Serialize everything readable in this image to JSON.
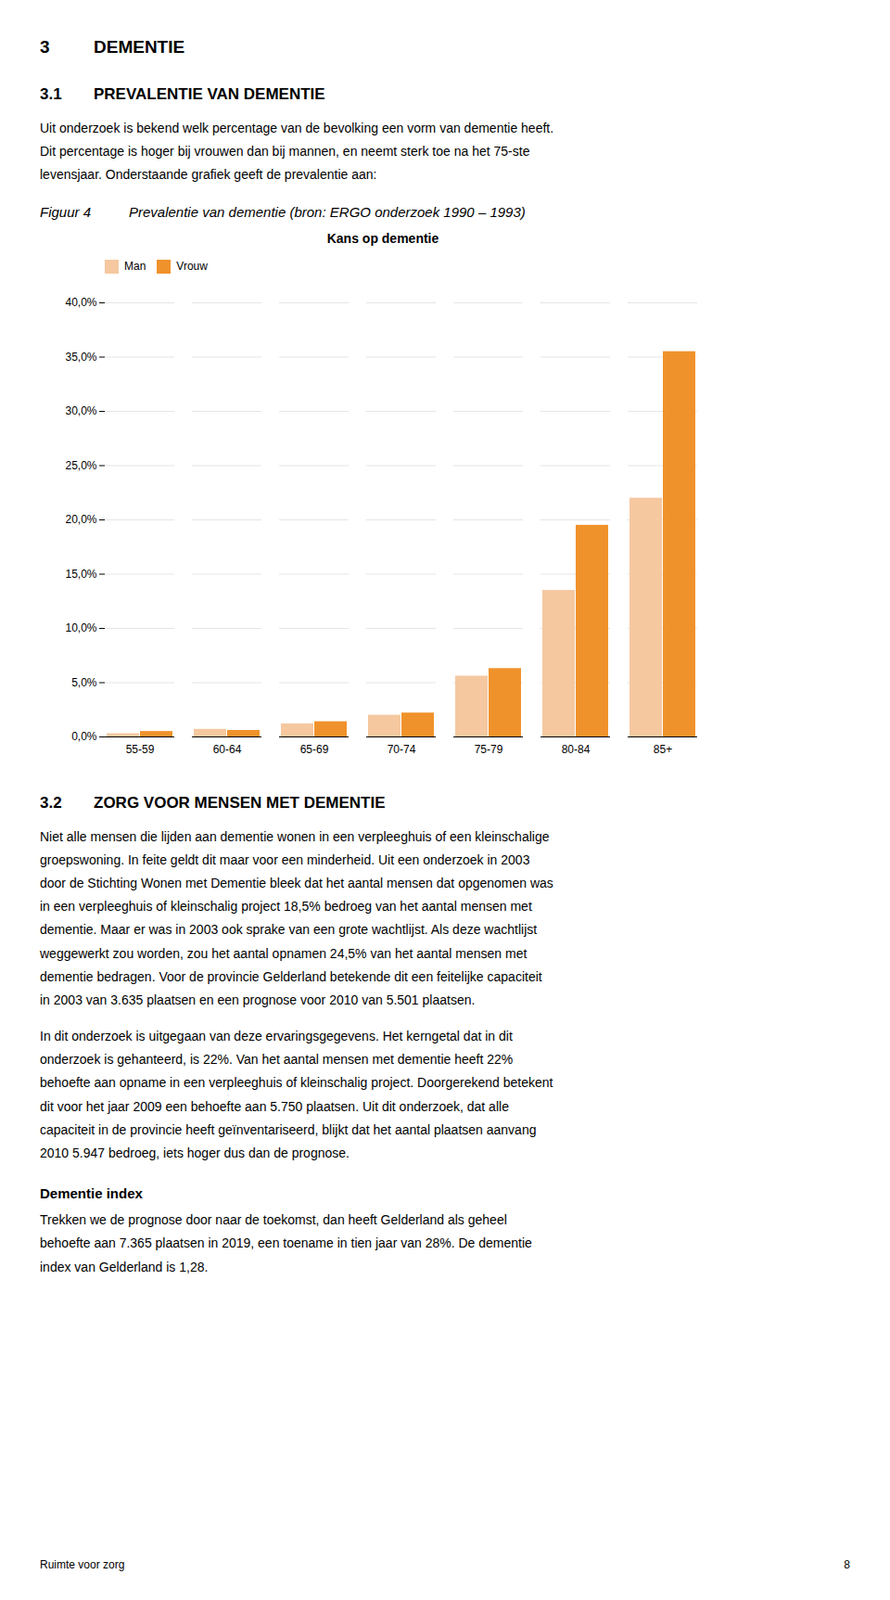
{
  "page": {
    "heading1": [
      "3",
      "DEMENTIE"
    ],
    "heading2": [
      "3.1",
      "PREVALENTIE VAN DEMENTIE"
    ],
    "paragraph1": "Uit onderzoek is bekend welk percentage van de bevolking een vorm van dementie heeft.\nDit percentage is hoger bij vrouwen dan bij mannen, en neemt sterk toe na het 75-ste\nlevensjaar. Onderstaande grafiek geeft de prevalentie aan:",
    "figure_caption": [
      "Figuur 4",
      "Prevalentie van dementie (bron: ERGO onderzoek 1990 – 1993)"
    ],
    "heading3": [
      "3.2",
      "ZORG VOOR MENSEN MET DEMENTIE"
    ],
    "paragraph2": "Niet alle mensen die lijden aan dementie wonen in een verpleeghuis of een kleinschalige\ngroepswoning. In feite geldt dit maar voor een minderheid. Uit een onderzoek in 2003\ndoor de Stichting Wonen met Dementie bleek dat het aantal mensen dat opgenomen was\nin een verpleeghuis of kleinschalig project 18,5% bedroeg van het aantal mensen met\ndementie. Maar er was in 2003 ook sprake van een grote wachtlijst. Als deze wachtlijst\nweggewerkt zou worden, zou het aantal opnamen 24,5% van het aantal mensen met\ndementie bedragen. Voor de provincie Gelderland betekende dit een feitelijke capaciteit\nin 2003 van 3.635 plaatsen en een prognose voor 2010 van 5.501 plaatsen.",
    "paragraph3": "In dit onderzoek is uitgegaan van deze ervaringsgegevens. Het kerngetal dat in dit\nonderzoek is gehanteerd, is 22%. Van het aantal mensen met dementie heeft 22%\nbehoefte aan opname in een verpleeghuis of kleinschalig project. Doorgerekend betekent\ndit voor het jaar 2009 een behoefte aan 5.750 plaatsen. Uit dit onderzoek, dat alle\ncapaciteit in de provincie heeft geïnventariseerd, blijkt dat het aantal plaatsen aanvang\n2010 5.947 bedroeg, iets hoger dus dan de prognose.",
    "heading4": "Dementie index",
    "paragraph4": "Trekken we de prognose door naar de toekomst, dan heeft Gelderland als geheel\nbehoefte aan 7.365 plaatsen in 2019, een toename in tien jaar van 28%. De dementie\nindex van Gelderland is 1,28.",
    "footer": [
      "Ruimte voor zorg",
      "8"
    ]
  },
  "chart_data": {
    "type": "bar",
    "title": "Kans op dementie",
    "categories": [
      "55-59",
      "60-64",
      "65-69",
      "70-74",
      "75-79",
      "80-84",
      "85+"
    ],
    "series": [
      {
        "name": "Man",
        "color": "#f5c8a0",
        "values": [
          0.3,
          0.7,
          1.2,
          2.0,
          5.6,
          13.5,
          22.0
        ]
      },
      {
        "name": "Vrouw",
        "color": "#f0922b",
        "values": [
          0.5,
          0.6,
          1.4,
          2.2,
          6.3,
          19.5,
          35.5
        ]
      }
    ],
    "ylim": [
      0.0,
      40.0
    ],
    "yticks": [
      {
        "value": 0.0,
        "label": "0,0%"
      },
      {
        "value": 5.0,
        "label": "5,0%"
      },
      {
        "value": 10.0,
        "label": "10,0%"
      },
      {
        "value": 15.0,
        "label": "15,0%"
      },
      {
        "value": 20.0,
        "label": "20,0%"
      },
      {
        "value": 25.0,
        "label": "25,0%"
      },
      {
        "value": 30.0,
        "label": "30,0%"
      },
      {
        "value": 35.0,
        "label": "35,0%"
      },
      {
        "value": 40.0,
        "label": "40,0%"
      }
    ],
    "grid": true,
    "legend": "top"
  }
}
